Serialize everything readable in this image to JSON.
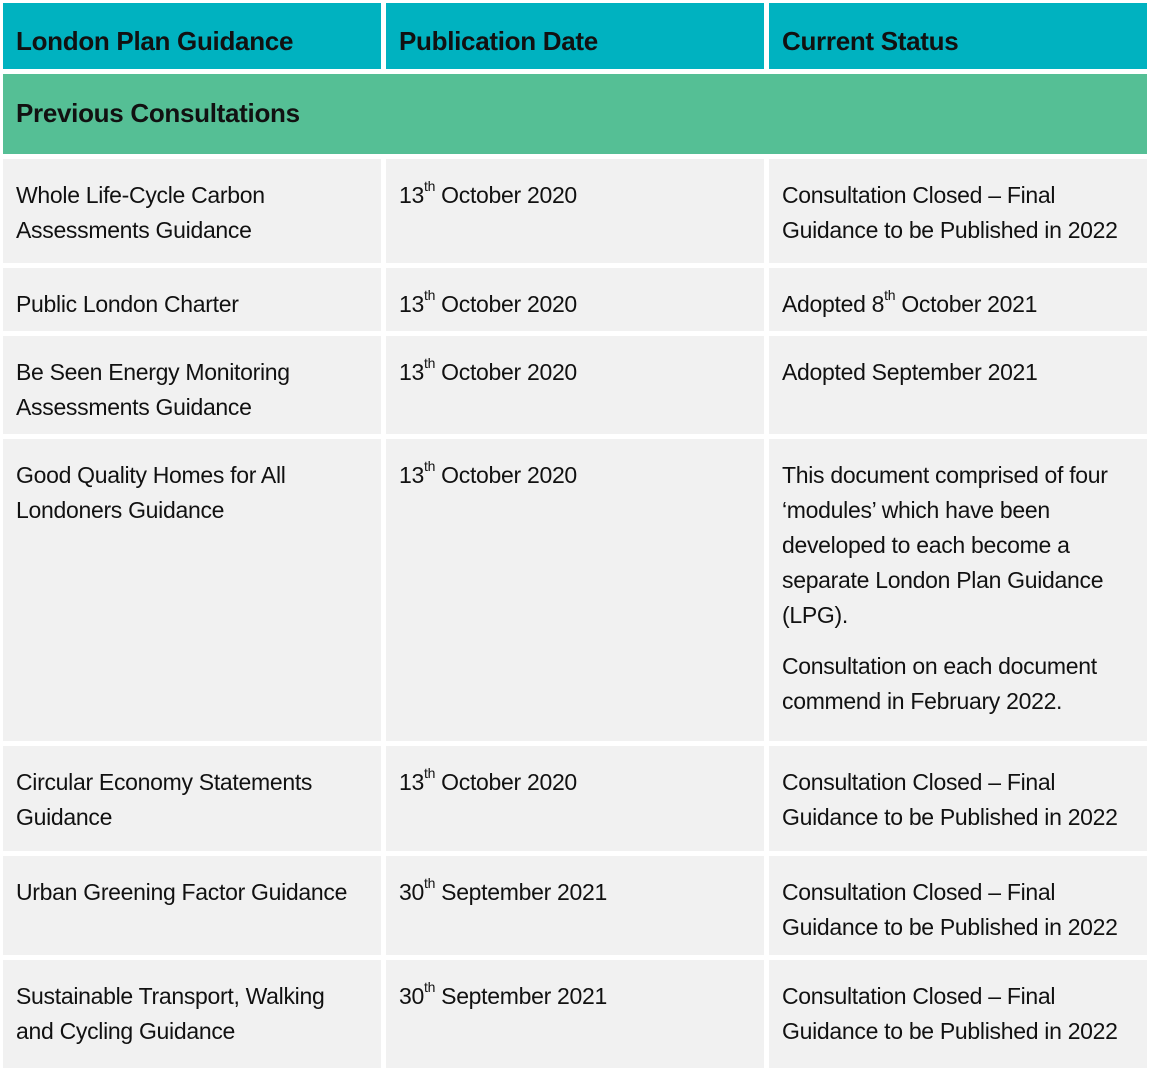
{
  "headers": {
    "guidance": "London Plan Guidance",
    "date": "Publication Date",
    "status": "Current Status"
  },
  "section_title": "Previous Consultations",
  "rows": [
    {
      "guidance": "Whole Life-Cycle Carbon Assessments Guidance",
      "date_day": "13",
      "date_suffix": "th",
      "date_rest": " October 2020",
      "status": "Consultation Closed – Final Guidance to be Published in 2022"
    },
    {
      "guidance": "Public London Charter",
      "date_day": "13",
      "date_suffix": "th",
      "date_rest": " October 2020",
      "status_pre": "Adopted 8",
      "status_suffix": "th",
      "status_post": " October 2021"
    },
    {
      "guidance": "Be Seen Energy Monitoring Assessments Guidance",
      "date_day": "13",
      "date_suffix": "th",
      "date_rest": " October 2020",
      "status": "Adopted September 2021"
    },
    {
      "guidance": "Good Quality Homes for All Londoners Guidance",
      "date_day": "13",
      "date_suffix": "th",
      "date_rest": " October 2020",
      "status_p1": "This document comprised of four ‘modules’ which have been developed to each become a separate London Plan Guidance (LPG).",
      "status_p2": "Consultation on each document commend in February 2022."
    },
    {
      "guidance": "Circular Economy Statements Guidance",
      "date_day": "13",
      "date_suffix": "th",
      "date_rest": " October 2020",
      "status": "Consultation Closed – Final Guidance to be Published in 2022"
    },
    {
      "guidance": "Urban Greening Factor Guidance",
      "date_day": "30",
      "date_suffix": "th",
      "date_rest": " September 2021",
      "status": "Consultation Closed – Final Guidance to be Published in 2022"
    },
    {
      "guidance": "Sustainable Transport, Walking and Cycling Guidance",
      "date_day": "30",
      "date_suffix": "th",
      "date_rest": " September 2021",
      "status": "Consultation Closed – Final Guidance to be Published in 2022"
    }
  ]
}
